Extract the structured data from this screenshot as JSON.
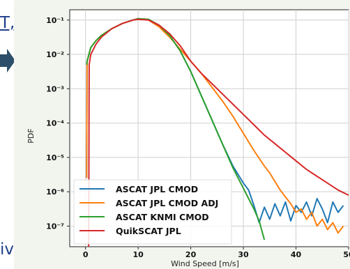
{
  "fragments": {
    "top": "T,",
    "bottom": "iv"
  },
  "chart_data": {
    "type": "line",
    "title": "",
    "xlabel": "Wind Speed [m/s]",
    "ylabel": "PDF",
    "xlim": [
      -3,
      50
    ],
    "ylim_log10": [
      -7.6,
      -0.7
    ],
    "log_y": true,
    "grid": true,
    "legend_position": "lower-left",
    "x_ticks": [
      0,
      10,
      20,
      30,
      40,
      50
    ],
    "x_tick_labels": [
      "0",
      "10",
      "20",
      "30",
      "40",
      "50"
    ],
    "y_ticks": [
      -1,
      -2,
      -3,
      -4,
      -5,
      -6,
      -7
    ],
    "y_tick_labels": [
      "10⁻¹",
      "10⁻²",
      "10⁻³",
      "10⁻⁴",
      "10⁻⁵",
      "10⁻⁶",
      "10⁻⁷"
    ],
    "series": [
      {
        "name": "ASCAT JPL CMOD",
        "color": "#1f77b4",
        "x": [
          0.2,
          0.3,
          1,
          2,
          3,
          5,
          7,
          9,
          10,
          12,
          14,
          16,
          18,
          20,
          22,
          24,
          26,
          28,
          30,
          31,
          32,
          33,
          34,
          35,
          36,
          37,
          38,
          39,
          40,
          41,
          42,
          43,
          44,
          45,
          46,
          47,
          48,
          49
        ],
        "y": [
          -5.6,
          -2.2,
          -1.8,
          -1.6,
          -1.45,
          -1.25,
          -1.1,
          -1.0,
          -0.96,
          -1.0,
          -1.15,
          -1.45,
          -1.9,
          -2.5,
          -3.2,
          -3.9,
          -4.6,
          -5.25,
          -5.75,
          -5.95,
          -6.4,
          -6.9,
          -6.45,
          -6.8,
          -6.35,
          -6.7,
          -6.3,
          -6.85,
          -6.4,
          -6.6,
          -6.3,
          -6.7,
          -6.2,
          -6.5,
          -6.9,
          -6.3,
          -6.6,
          -6.4
        ]
      },
      {
        "name": "ASCAT JPL CMOD ADJ",
        "color": "#ff7f0e",
        "x": [
          0.2,
          0.3,
          1,
          2,
          3,
          5,
          7,
          9,
          10,
          12,
          14,
          16,
          18,
          20,
          22,
          24,
          26,
          28,
          30,
          32,
          34,
          35,
          36,
          37,
          38,
          39,
          40,
          41,
          42,
          43,
          44,
          45,
          46,
          47,
          48,
          49
        ],
        "y": [
          -5.6,
          -2.2,
          -1.8,
          -1.6,
          -1.45,
          -1.25,
          -1.1,
          -1.0,
          -0.96,
          -1.0,
          -1.2,
          -1.5,
          -1.85,
          -2.2,
          -2.55,
          -2.95,
          -3.35,
          -3.8,
          -4.3,
          -4.8,
          -5.25,
          -5.45,
          -5.7,
          -5.95,
          -6.15,
          -6.35,
          -6.6,
          -6.5,
          -6.8,
          -6.6,
          -7.0,
          -6.8,
          -7.1,
          -6.9,
          -7.2,
          -7.0
        ]
      },
      {
        "name": "ASCAT KNMI CMOD",
        "color": "#2ca02c",
        "x": [
          0.2,
          0.3,
          1,
          2,
          3,
          5,
          7,
          9,
          10,
          12,
          14,
          16,
          18,
          20,
          22,
          24,
          26,
          27,
          28,
          29,
          30,
          31,
          32,
          33,
          34
        ],
        "y": [
          -2.3,
          -2.2,
          -1.8,
          -1.6,
          -1.45,
          -1.25,
          -1.1,
          -1.0,
          -0.96,
          -0.98,
          -1.15,
          -1.45,
          -1.9,
          -2.5,
          -3.2,
          -3.9,
          -4.6,
          -4.95,
          -5.3,
          -5.6,
          -5.9,
          -6.2,
          -6.5,
          -6.85,
          -7.4
        ]
      },
      {
        "name": "QuikSCAT JPL",
        "color": "#d62728",
        "x": [
          0.6,
          0.7,
          1,
          2,
          3,
          5,
          7,
          9,
          10,
          12,
          14,
          16,
          18,
          20,
          22,
          24,
          26,
          28,
          30,
          32,
          34,
          36,
          38,
          40,
          42,
          44,
          46,
          48,
          50
        ],
        "y": [
          -7.6,
          -2.3,
          -2.0,
          -1.7,
          -1.5,
          -1.25,
          -1.1,
          -1.0,
          -0.98,
          -1.0,
          -1.15,
          -1.4,
          -1.75,
          -2.2,
          -2.55,
          -2.85,
          -3.15,
          -3.45,
          -3.75,
          -4.05,
          -4.35,
          -4.6,
          -4.85,
          -5.1,
          -5.35,
          -5.55,
          -5.75,
          -5.95,
          -6.1
        ]
      }
    ]
  }
}
